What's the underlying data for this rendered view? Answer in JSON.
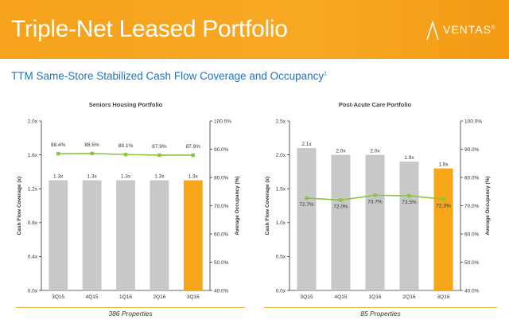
{
  "header": {
    "title": "Triple-Net Leased Portfolio",
    "logo_text": "VENTAS",
    "logo_mark": "®",
    "subtitle": "TTM Same-Store Stabilized Cash Flow Coverage and Occupancy",
    "subtitle_footnote": "1"
  },
  "colors": {
    "banner": "#f6a21c",
    "subtitle": "#1a73c8",
    "bar_gray": "#c8c8c8",
    "bar_highlight": "#f8a619",
    "line": "#8cc63f",
    "rule": "#f0b447"
  },
  "chart_data": [
    {
      "type": "bar+line",
      "title": "Seniors Housing Portfolio",
      "categories": [
        "3Q15",
        "4Q15",
        "1Q16",
        "2Q16",
        "3Q16"
      ],
      "bar_series": {
        "name": "Cash Flow Coverage (x)",
        "values": [
          1.3,
          1.3,
          1.3,
          1.3,
          1.3
        ],
        "labels": [
          "1.3x",
          "1.3x",
          "1.3x",
          "1.3x",
          "1.3x"
        ],
        "highlight_index": 4
      },
      "line_series": {
        "name": "Average Occupancy (%)",
        "values": [
          88.4,
          88.5,
          88.1,
          87.9,
          87.9
        ],
        "labels": [
          "88.4%",
          "88.5%",
          "88.1%",
          "87.9%",
          "87.9%"
        ]
      },
      "ylabel_left": "Cash Flow Coverage (x)",
      "ylabel_right": "Average Occupancy (%)",
      "left_ylim": [
        0,
        2.0
      ],
      "left_ticks": [
        "0.0x",
        "0.4x",
        "0.8x",
        "1.2x",
        "1.6x",
        "2.0x"
      ],
      "left_tick_values": [
        0,
        0.4,
        0.8,
        1.2,
        1.6,
        2.0
      ],
      "right_ylim": [
        40,
        100
      ],
      "right_ticks": [
        "40.0%",
        "50.0%",
        "60.0%",
        "70.0%",
        "80.0%",
        "90.0%",
        "100.0%"
      ],
      "right_tick_values": [
        40,
        50,
        60,
        70,
        80,
        90,
        100
      ],
      "footer": "386 Properties"
    },
    {
      "type": "bar+line",
      "title": "Post-Acute Care Portfolio",
      "categories": [
        "3Q15",
        "4Q15",
        "1Q16",
        "2Q16",
        "3Q16"
      ],
      "bar_series": {
        "name": "Cash Flow Coverage (x)",
        "values": [
          2.1,
          2.0,
          2.0,
          1.9,
          1.8
        ],
        "labels": [
          "2.1x",
          "2.0x",
          "2.0x",
          "1.9x",
          "1.8x"
        ],
        "highlight_index": 4
      },
      "line_series": {
        "name": "Average Occupancy (%)",
        "values": [
          72.7,
          72.0,
          73.7,
          73.5,
          72.3
        ],
        "labels": [
          "72.7%",
          "72.0%",
          "73.7%",
          "73.5%",
          "72.3%"
        ]
      },
      "ylabel_left": "Cash Flow Coverage (x)",
      "ylabel_right": "Average Occupancy (%)",
      "left_ylim": [
        0,
        2.5
      ],
      "left_ticks": [
        "0.0x",
        "0.5x",
        "1.0x",
        "1.5x",
        "2.0x",
        "2.5x"
      ],
      "left_tick_values": [
        0,
        0.5,
        1.0,
        1.5,
        2.0,
        2.5
      ],
      "right_ylim": [
        40,
        100
      ],
      "right_ticks": [
        "40.0%",
        "50.0%",
        "60.0%",
        "70.0%",
        "80.0%",
        "90.0%",
        "100.0%"
      ],
      "right_tick_values": [
        40,
        50,
        60,
        70,
        80,
        90,
        100
      ],
      "footer": "85 Properties"
    }
  ]
}
